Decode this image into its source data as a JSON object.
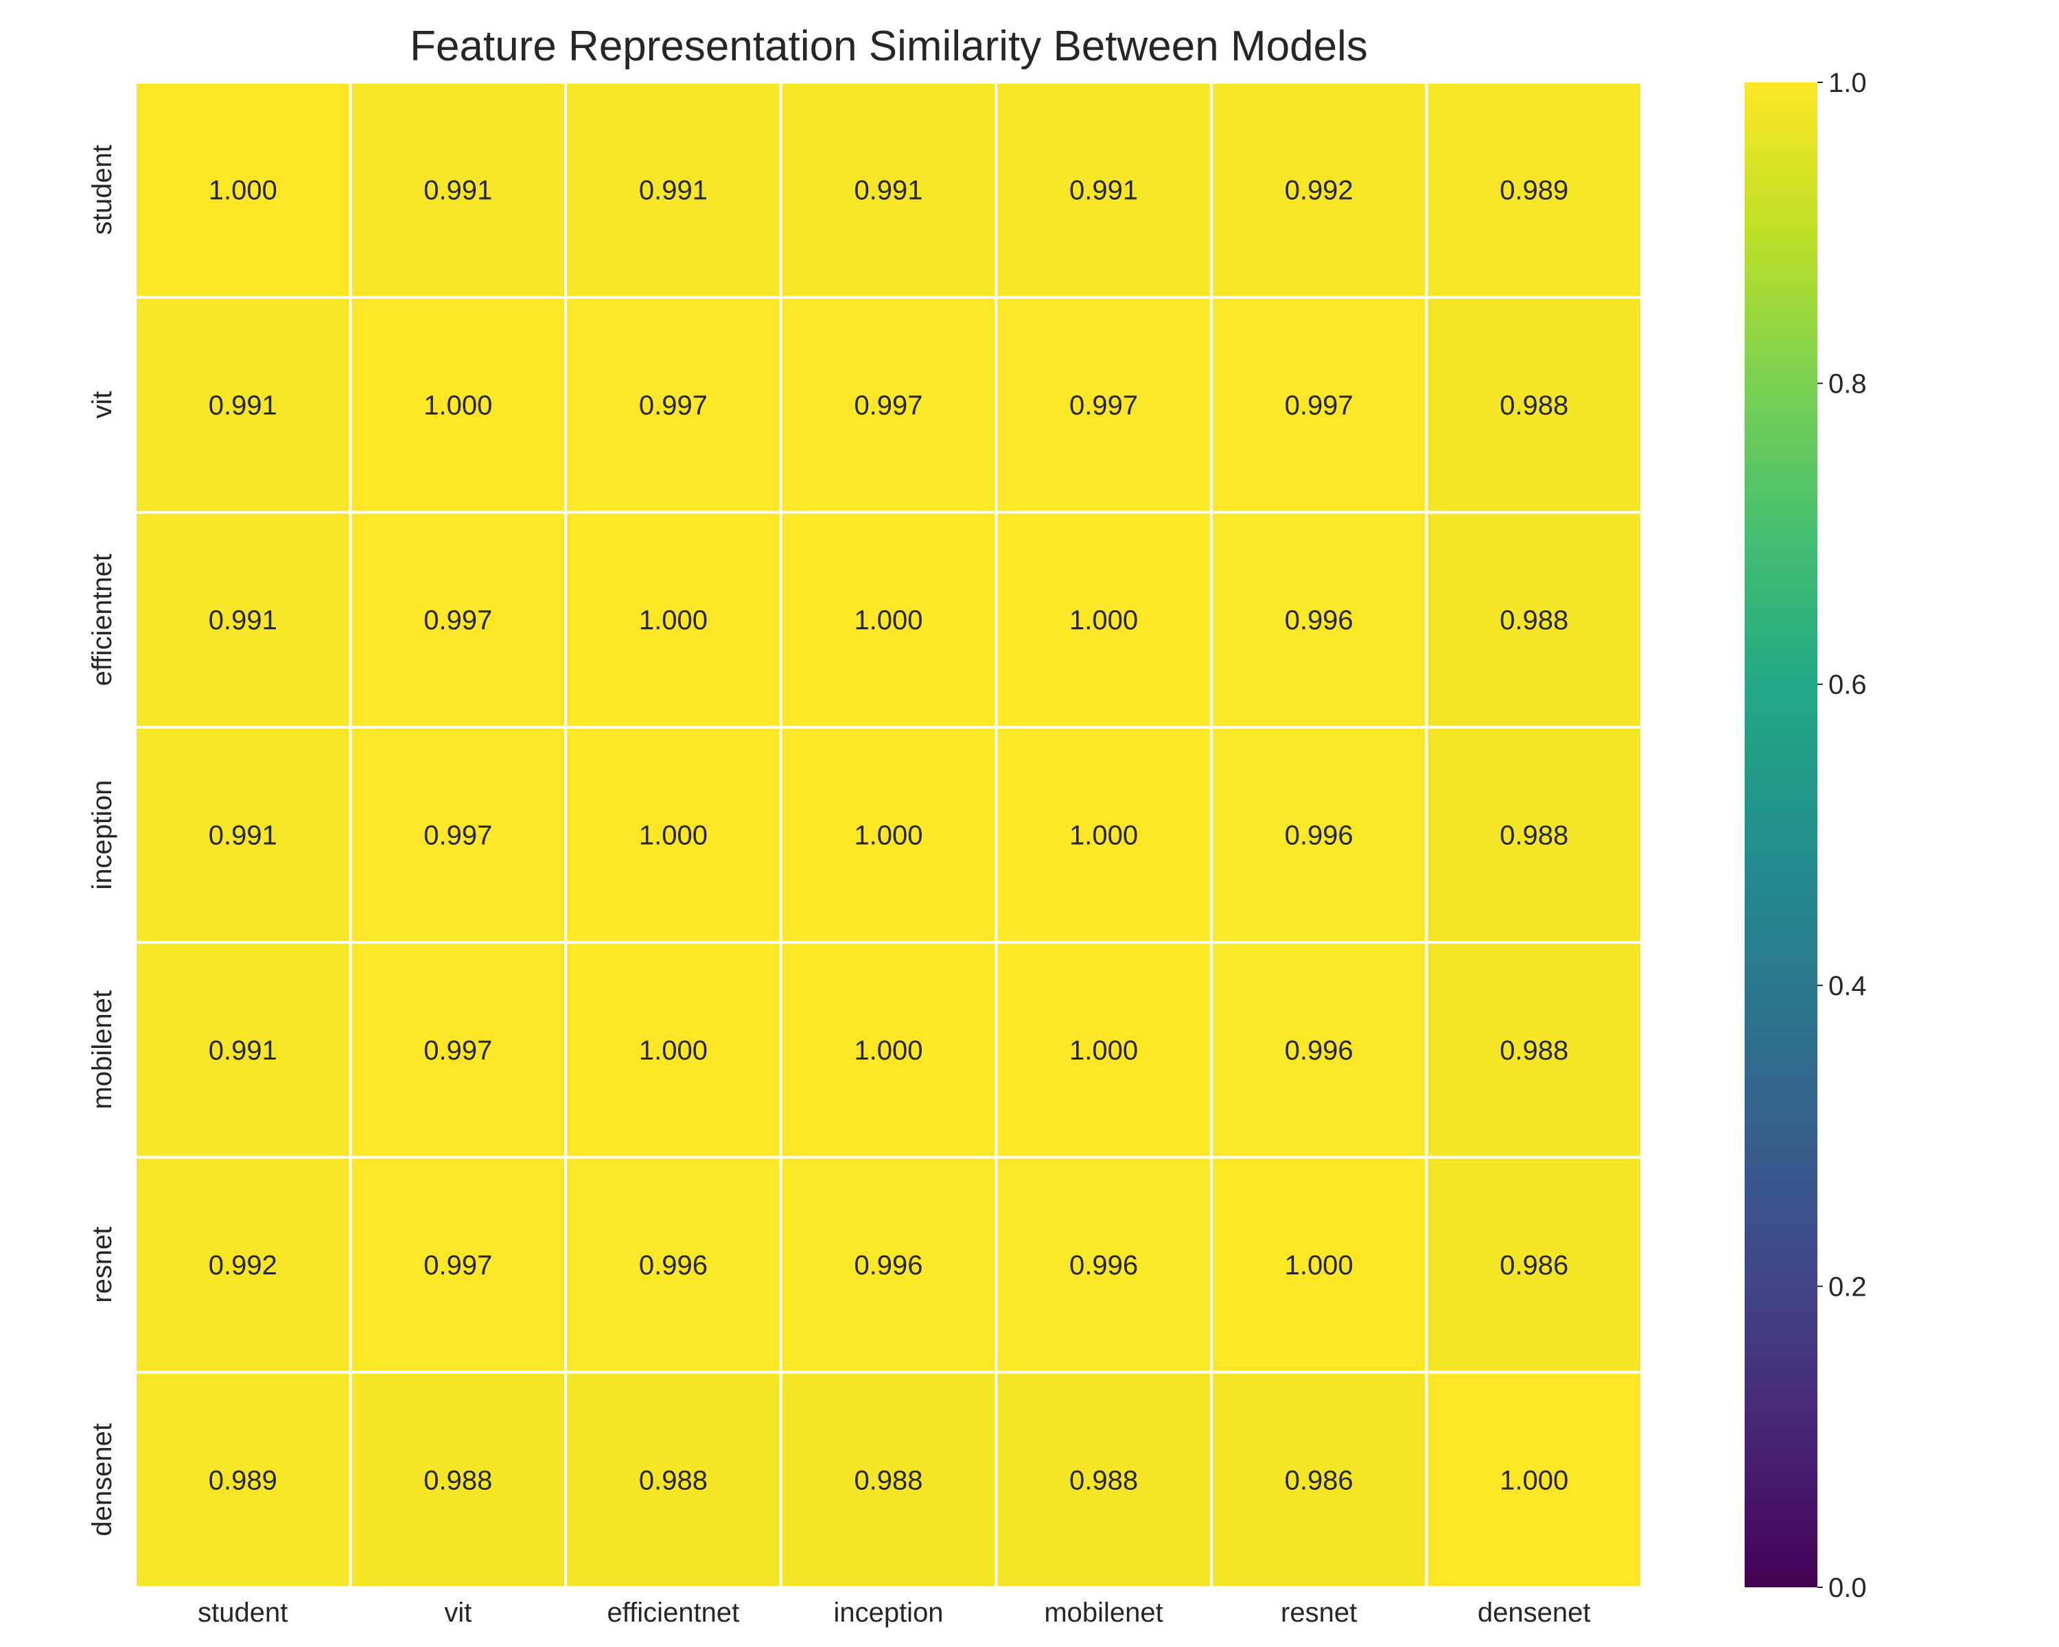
{
  "chart_data": {
    "type": "heatmap",
    "title": "Feature Representation Similarity Between Models",
    "xlabel": "",
    "ylabel": "",
    "x_categories": [
      "student",
      "vit",
      "efficientnet",
      "inception",
      "mobilenet",
      "resnet",
      "densenet"
    ],
    "y_categories": [
      "student",
      "vit",
      "efficientnet",
      "inception",
      "mobilenet",
      "resnet",
      "densenet"
    ],
    "values": [
      [
        1.0,
        0.991,
        0.991,
        0.991,
        0.991,
        0.992,
        0.989
      ],
      [
        0.991,
        1.0,
        0.997,
        0.997,
        0.997,
        0.997,
        0.988
      ],
      [
        0.991,
        0.997,
        1.0,
        1.0,
        1.0,
        0.996,
        0.988
      ],
      [
        0.991,
        0.997,
        1.0,
        1.0,
        1.0,
        0.996,
        0.988
      ],
      [
        0.991,
        0.997,
        1.0,
        1.0,
        1.0,
        0.996,
        0.988
      ],
      [
        0.992,
        0.997,
        0.996,
        0.996,
        0.996,
        1.0,
        0.986
      ],
      [
        0.989,
        0.988,
        0.988,
        0.988,
        0.988,
        0.986,
        1.0
      ]
    ],
    "value_format_decimals": 3,
    "colormap": "viridis",
    "vmin": 0.0,
    "vmax": 1.0,
    "colorbar_ticks": [
      "0.0",
      "0.2",
      "0.4",
      "0.6",
      "0.8",
      "1.0"
    ],
    "colorbar_tick_values": [
      0.0,
      0.2,
      0.4,
      0.6,
      0.8,
      1.0
    ],
    "grid": false,
    "cell_border_color": "#ffffff"
  }
}
